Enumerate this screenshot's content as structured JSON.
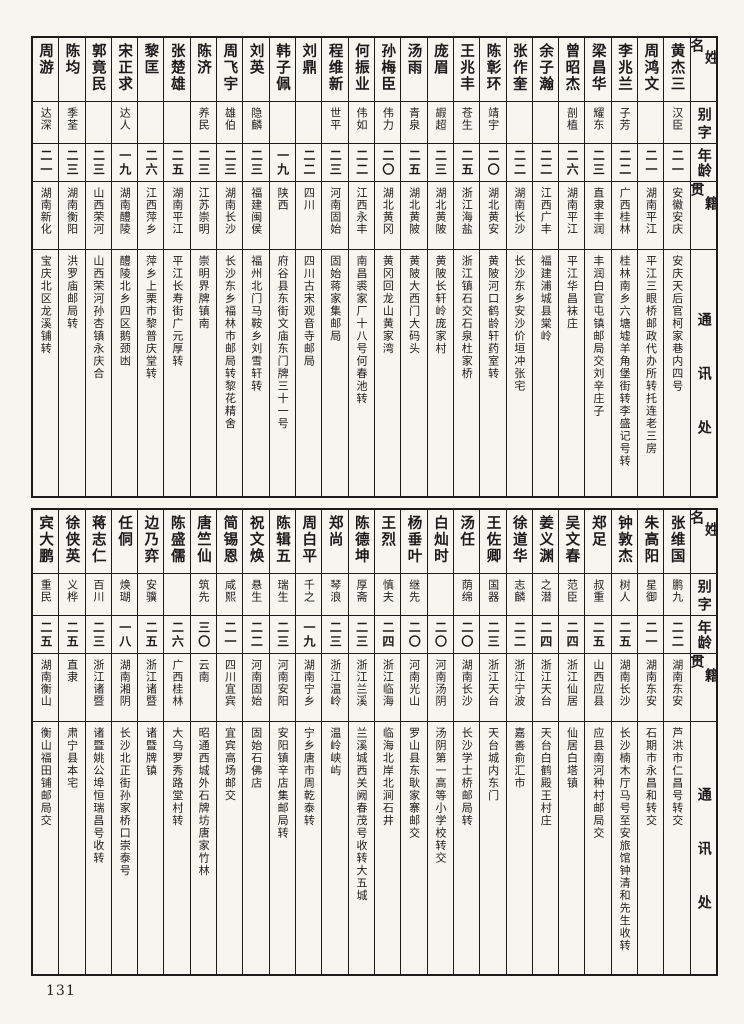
{
  "page": {
    "number": "131"
  },
  "headers": {
    "name_label": "姓名",
    "courtesy_label": "别字",
    "age_label": "年龄",
    "origin_label": "籍贯",
    "address_label": "通讯处"
  },
  "tables": [
    {
      "note": "top table, people listed right-to-left",
      "people": [
        {
          "name": "黄杰三",
          "courtesy": "汉臣",
          "age": "二一",
          "origin": "安徽安庆",
          "address": "安庆天后官柯家巷内四号"
        },
        {
          "name": "周鸿文",
          "courtesy": "",
          "age": "二一",
          "origin": "湖南平江",
          "address": "平江三眼桥邮政代办所转托连老三房"
        },
        {
          "name": "李兆兰",
          "courtesy": "子芳",
          "age": "二二",
          "origin": "广西桂林",
          "address": "桂林南乡六塘墟羊角堡街转李盛记号转"
        },
        {
          "name": "梁昌华",
          "courtesy": "耀东",
          "age": "二三",
          "origin": "直隶丰润",
          "address": "丰润白官屯镇邮局交刘辛庄子"
        },
        {
          "name": "曾昭杰",
          "courtesy": "剖植",
          "age": "二六",
          "origin": "湖南平江",
          "address": "平江华昌袜庄"
        },
        {
          "name": "余子瀚",
          "courtesy": "",
          "age": "二二",
          "origin": "江西广丰",
          "address": "福建浦城县棠岭"
        },
        {
          "name": "张作奎",
          "courtesy": "",
          "age": "二二",
          "origin": "湖南长沙",
          "address": "长沙东乡安沙价垣冲张宅"
        },
        {
          "name": "陈彰环",
          "courtesy": "靖宇",
          "age": "二〇",
          "origin": "湖北黄安",
          "address": "黄陂河口鹤龄轩药室转"
        },
        {
          "name": "王兆丰",
          "courtesy": "苍生",
          "age": "二五",
          "origin": "浙江海盐",
          "address": "浙江镇石交石泉杜家桥"
        },
        {
          "name": "庞眉",
          "courtesy": "嘏超",
          "age": "二三",
          "origin": "湖北黄陂",
          "address": "黄陂长轩岭庞家村"
        },
        {
          "name": "汤雨",
          "courtesy": "青泉",
          "age": "二五",
          "origin": "湖北黄陂",
          "address": "黄陂大西门大码头"
        },
        {
          "name": "孙梅臣",
          "courtesy": "伟力",
          "age": "二〇",
          "origin": "湖北黄冈",
          "address": "黄冈回龙山黄家湾"
        },
        {
          "name": "何振业",
          "courtesy": "伟如",
          "age": "二二",
          "origin": "江西永丰",
          "address": "南昌裘家厂十八号何春池转"
        },
        {
          "name": "程维新",
          "courtesy": "世平",
          "age": "二三",
          "origin": "河南固始",
          "address": "固始蒋家集邮局"
        },
        {
          "name": "刘鼎",
          "courtesy": "",
          "age": "二二",
          "origin": "四川",
          "address": "四川古宋观音寺邮局"
        },
        {
          "name": "韩子佩",
          "courtesy": "",
          "age": "一九",
          "origin": "陕西",
          "address": "府谷县东街文庙东门牌三十一号"
        },
        {
          "name": "刘英",
          "courtesy": "隐麟",
          "age": "二三",
          "origin": "福建闽侯",
          "address": "福州北门马鞍乡刘雪轩转"
        },
        {
          "name": "周飞宇",
          "courtesy": "雄伯",
          "age": "二三",
          "origin": "湖南长沙",
          "address": "长沙东乡福林市邮局转黎花精舍"
        },
        {
          "name": "陈济",
          "courtesy": "养民",
          "age": "二三",
          "origin": "江苏崇明",
          "address": "崇明界牌镇南"
        },
        {
          "name": "张楚雄",
          "courtesy": "",
          "age": "二五",
          "origin": "湖南平江",
          "address": "平江长寿街广元厚转"
        },
        {
          "name": "黎匡",
          "courtesy": "",
          "age": "二六",
          "origin": "江西萍乡",
          "address": "萍乡上栗市黎普庆堂转"
        },
        {
          "name": "宋正求",
          "courtesy": "达人",
          "age": "一九",
          "origin": "湖南醴陵",
          "address": "醴陵北乡四区鹅颈凼"
        },
        {
          "name": "郭竟民",
          "courtesy": "",
          "age": "二三",
          "origin": "山西荣河",
          "address": "山西荣河孙杏镇永庆合"
        },
        {
          "name": "陈均",
          "courtesy": "季荃",
          "age": "二三",
          "origin": "湖南衡阳",
          "address": "洪罗庙邮局转"
        },
        {
          "name": "周游",
          "courtesy": "达深",
          "age": "二一",
          "origin": "湖南新化",
          "address": "宝庆北区龙溪铺转"
        }
      ]
    },
    {
      "note": "bottom table, people listed right-to-left",
      "people": [
        {
          "name": "张维国",
          "courtesy": "鹏九",
          "age": "二二",
          "origin": "湖南东安",
          "address": "芦洪市仁昌号转交"
        },
        {
          "name": "朱高阳",
          "courtesy": "星御",
          "age": "二一",
          "origin": "湖南东安",
          "address": "石期市永昌和转交"
        },
        {
          "name": "钟敦杰",
          "courtesy": "树人",
          "age": "二五",
          "origin": "湖南长沙",
          "address": "长沙楠木厅马号至安旅馆钟清和先生收转"
        },
        {
          "name": "郑足",
          "courtesy": "叔重",
          "age": "二五",
          "origin": "山西应县",
          "address": "应县南河种村邮局交"
        },
        {
          "name": "吴文春",
          "courtesy": "范臣",
          "age": "二四",
          "origin": "浙江仙居",
          "address": "仙居白塔镇"
        },
        {
          "name": "姜义渊",
          "courtesy": "之潜",
          "age": "二四",
          "origin": "浙江天台",
          "address": "天台白鹤殿王村庄"
        },
        {
          "name": "徐道华",
          "courtesy": "志麟",
          "age": "二二",
          "origin": "浙江宁波",
          "address": "嘉善俞汇市"
        },
        {
          "name": "王佐卿",
          "courtesy": "国器",
          "age": "二三",
          "origin": "浙江天台",
          "address": "天台城内东门"
        },
        {
          "name": "汤任",
          "courtesy": "荫绵",
          "age": "二〇",
          "origin": "湖南长沙",
          "address": "长沙学士桥邮局转"
        },
        {
          "name": "白灿时",
          "courtesy": "",
          "age": "二〇",
          "origin": "河南汤阴",
          "address": "汤阴第一高等小学校转交"
        },
        {
          "name": "杨垂叶",
          "courtesy": "继先",
          "age": "二〇",
          "origin": "河南光山",
          "address": "罗山县东耿家寨邮交"
        },
        {
          "name": "王烈",
          "courtesy": "慎夫",
          "age": "二四",
          "origin": "浙江临海",
          "address": "临海北岸北涧石井"
        },
        {
          "name": "陈德坤",
          "courtesy": "厚斋",
          "age": "二三",
          "origin": "浙江兰溪",
          "address": "兰溪城西关阙春茂号收转大五城"
        },
        {
          "name": "郑尚",
          "courtesy": "琴浪",
          "age": "二三",
          "origin": "浙江温岭",
          "address": "温岭峡屿"
        },
        {
          "name": "周白平",
          "courtesy": "千之",
          "age": "一九",
          "origin": "湖南宁乡",
          "address": "宁乡唐市周乾泰转"
        },
        {
          "name": "陈辑五",
          "courtesy": "瑞生",
          "age": "二三",
          "origin": "河南安阳",
          "address": "安阳镇辛店集邮局转"
        },
        {
          "name": "祝文焕",
          "courtesy": "悬生",
          "age": "二二",
          "origin": "河南固始",
          "address": "固始石佛店"
        },
        {
          "name": "简锡恩",
          "courtesy": "咸熙",
          "age": "二一",
          "origin": "四川宜宾",
          "address": "宜宾高场邮交"
        },
        {
          "name": "唐竺仙",
          "courtesy": "筑先",
          "age": "三〇",
          "origin": "云南",
          "address": "昭通西城外石牌坊唐家竹林"
        },
        {
          "name": "陈盛儒",
          "courtesy": "",
          "age": "二六",
          "origin": "广西桂林",
          "address": "大乌罗秀路堂村转"
        },
        {
          "name": "边乃弈",
          "courtesy": "安骥",
          "age": "二五",
          "origin": "浙江诸暨",
          "address": "诸暨牌镇"
        },
        {
          "name": "任侗",
          "courtesy": "焕瑚",
          "age": "一八",
          "origin": "湖南湘阴",
          "address": "长沙北正街孙家桥口崇泰号"
        },
        {
          "name": "蒋志仁",
          "courtesy": "百川",
          "age": "二三",
          "origin": "浙江诸暨",
          "address": "诸暨姚公埠恒瑞昌号收转"
        },
        {
          "name": "徐侠英",
          "courtesy": "义桦",
          "age": "二五",
          "origin": "直隶",
          "address": "肃宁县本宅"
        },
        {
          "name": "宾大鹏",
          "courtesy": "重民",
          "age": "二五",
          "origin": "湖南衡山",
          "address": "衡山福田铺邮局交"
        }
      ]
    }
  ]
}
